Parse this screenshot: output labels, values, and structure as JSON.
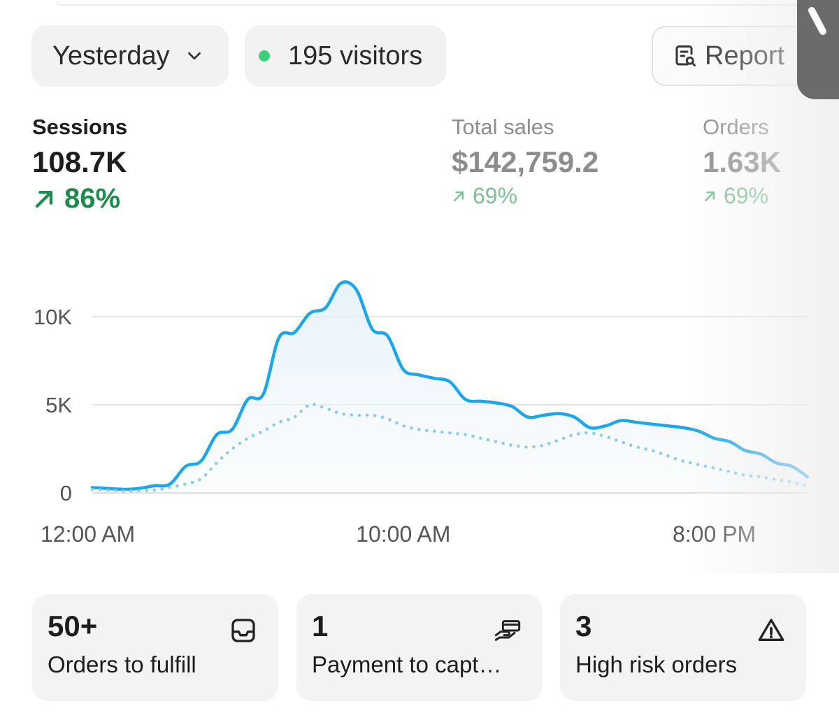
{
  "header": {
    "date_filter": {
      "label": "Yesterday",
      "icon": "chevron-down-icon"
    },
    "visitors": {
      "label": "195 visitors",
      "status_color": "#3ccf7c"
    },
    "report_button": {
      "label": "Report",
      "icon": "report-search-icon"
    }
  },
  "metrics": {
    "sessions": {
      "label": "Sessions",
      "value": "108.7K",
      "change": "86%",
      "trend": "up",
      "color": "#1e8a4d"
    },
    "total_sales": {
      "label": "Total sales",
      "value": "$142,759.2",
      "change": "69%",
      "trend": "up"
    },
    "orders": {
      "label": "Orders",
      "value": "1.63K",
      "change": "69%",
      "trend": "up"
    }
  },
  "chart_data": {
    "type": "line",
    "y_ticks": [
      "0",
      "5K",
      "10K"
    ],
    "x_ticks": [
      "12:00 AM",
      "10:00 AM",
      "8:00 PM"
    ],
    "ylim": [
      0,
      12500
    ],
    "grid": true,
    "series": [
      {
        "style": "solid",
        "color": "#1ea7e8",
        "x": [
          0,
          0.5,
          1,
          1.5,
          2,
          2.5,
          3,
          3.5,
          4,
          4.5,
          5,
          5.5,
          6,
          6.5,
          7,
          7.5,
          8,
          8.5,
          9,
          9.5,
          10,
          10.5,
          11,
          11.5,
          12,
          12.5,
          13,
          13.5,
          14,
          14.5,
          15,
          15.5,
          16,
          16.5,
          17,
          17.5,
          18,
          18.5,
          19,
          19.5,
          20,
          20.5,
          21,
          21.5,
          22,
          22.5,
          23
        ],
        "y": [
          300,
          250,
          200,
          250,
          400,
          500,
          1500,
          1800,
          3300,
          3600,
          5300,
          5600,
          8800,
          9100,
          10200,
          10500,
          11900,
          11500,
          9300,
          8900,
          7000,
          6700,
          6500,
          6300,
          5300,
          5200,
          5100,
          4900,
          4300,
          4400,
          4500,
          4300,
          3700,
          3800,
          4100,
          4000,
          3900,
          3800,
          3700,
          3500,
          3100,
          2900,
          2400,
          2200,
          1700,
          1500,
          900
        ]
      },
      {
        "style": "dotted",
        "color": "#8dcbe6",
        "x": [
          0,
          0.5,
          1,
          1.5,
          2,
          2.5,
          3,
          3.5,
          4,
          4.5,
          5,
          5.5,
          6,
          6.5,
          7,
          7.5,
          8,
          8.5,
          9,
          9.5,
          10,
          10.5,
          11,
          11.5,
          12,
          12.5,
          13,
          13.5,
          14,
          14.5,
          15,
          15.5,
          16,
          16.5,
          17,
          17.5,
          18,
          18.5,
          19,
          19.5,
          20,
          20.5,
          21,
          21.5,
          22,
          22.5,
          23
        ],
        "y": [
          200,
          150,
          100,
          120,
          150,
          300,
          500,
          800,
          1700,
          2500,
          3100,
          3500,
          4000,
          4300,
          5000,
          4800,
          4500,
          4400,
          4400,
          4200,
          3800,
          3600,
          3500,
          3400,
          3300,
          3100,
          2900,
          2700,
          2600,
          2700,
          3000,
          3300,
          3400,
          3200,
          2900,
          2600,
          2400,
          2100,
          1800,
          1600,
          1400,
          1200,
          1000,
          900,
          750,
          600,
          400
        ]
      }
    ]
  },
  "cards": [
    {
      "value": "50+",
      "label": "Orders to fulfill",
      "icon": "inbox-icon"
    },
    {
      "value": "1",
      "label": "Payment to capt…",
      "icon": "payment-hand-icon"
    },
    {
      "value": "3",
      "label": "High risk orders",
      "icon": "warning-triangle-icon"
    }
  ]
}
